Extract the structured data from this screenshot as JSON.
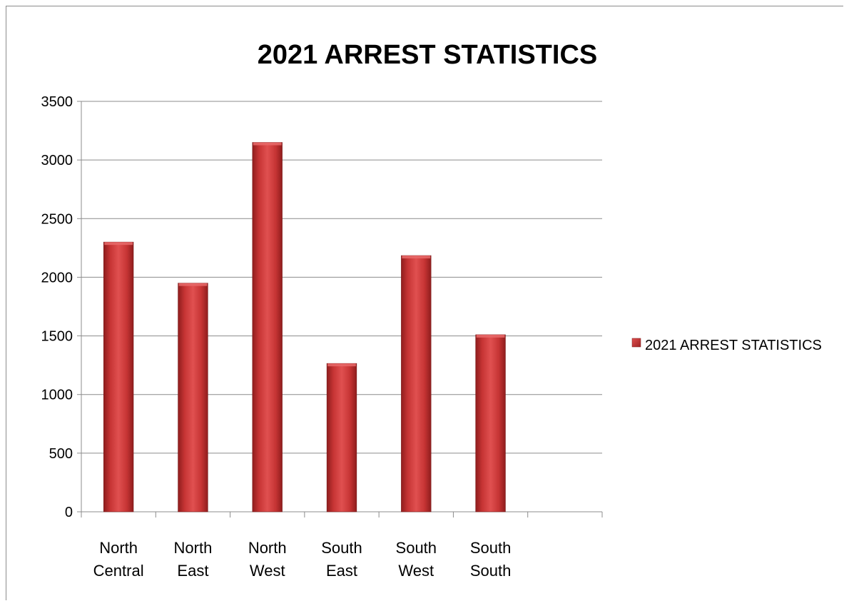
{
  "chart_data": {
    "type": "bar",
    "title": "2021 ARREST STATISTICS",
    "xlabel": "",
    "ylabel": "",
    "categories": [
      [
        "North",
        "Central"
      ],
      [
        "North",
        "East"
      ],
      [
        "North",
        "West"
      ],
      [
        "South",
        "East"
      ],
      [
        "South",
        "West"
      ],
      [
        "South",
        "South"
      ]
    ],
    "series": [
      {
        "name": "2021 ARREST STATISTICS",
        "values": [
          2300,
          1950,
          3150,
          1265,
          2185,
          1510
        ],
        "color": "#c93a3a"
      }
    ],
    "ylim": [
      0,
      3500
    ],
    "yticks": [
      0,
      500,
      1000,
      1500,
      2000,
      2500,
      3000,
      3500
    ],
    "empty_slots": 1,
    "grid": true,
    "legend_position": "right"
  }
}
